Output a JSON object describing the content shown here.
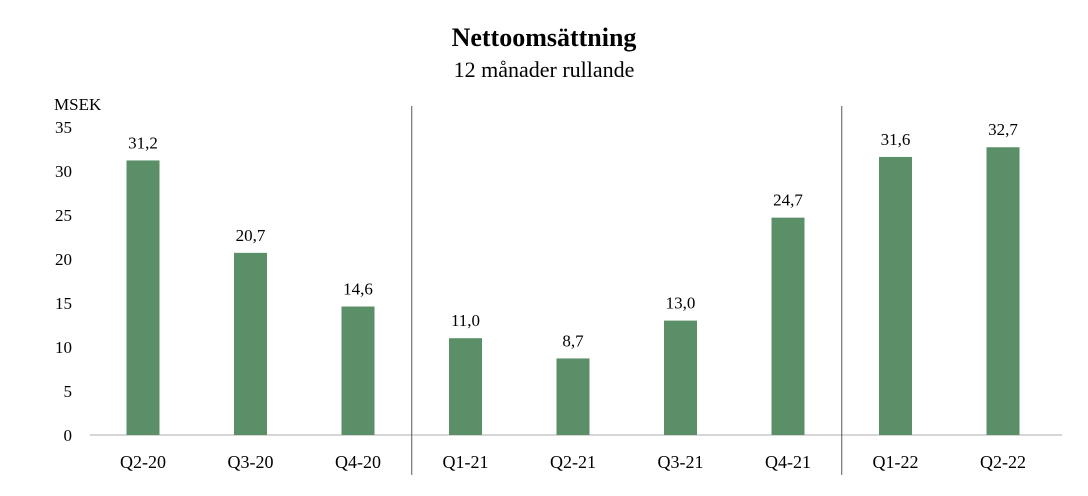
{
  "chart_data": {
    "type": "bar",
    "title": "Nettoomsättning",
    "subtitle": "12 månader rullande",
    "ylabel": "MSEK",
    "xlabel": "",
    "categories": [
      "Q2-20",
      "Q3-20",
      "Q4-20",
      "Q1-21",
      "Q2-21",
      "Q3-21",
      "Q4-21",
      "Q1-22",
      "Q2-22"
    ],
    "values": [
      31.2,
      20.7,
      14.6,
      11.0,
      8.7,
      13.0,
      24.7,
      31.6,
      32.7
    ],
    "data_labels": [
      "31,2",
      "20,7",
      "14,6",
      "11,0",
      "8,7",
      "13,0",
      "24,7",
      "31,6",
      "32,7"
    ],
    "ylim": [
      0,
      35
    ],
    "yticks": [
      0,
      5,
      10,
      15,
      20,
      25,
      30,
      35
    ],
    "group_dividers_after": [
      "Q4-20",
      "Q4-21"
    ],
    "grid": false,
    "legend": "none",
    "bar_color": "#5b8f68",
    "axis_color": "#c8c8c8",
    "divider_color": "#595959"
  }
}
